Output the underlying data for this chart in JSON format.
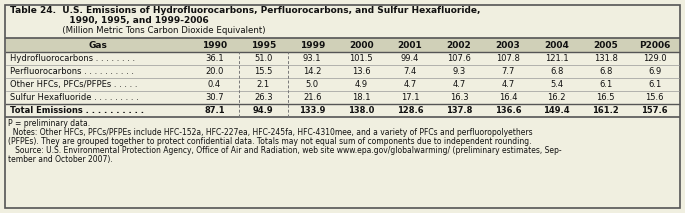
{
  "title_line1": "Table 24.  U.S. Emissions of Hydrofluorocarbons, Perfluorocarbons, and Sulfur Hexafluoride,",
  "title_line2": "                   1990, 1995, and 1999-2006",
  "title_line3": "                   (Million Metric Tons Carbon Dioxide Equivalent)",
  "columns": [
    "Gas",
    "1990",
    "1995",
    "1999",
    "2000",
    "2001",
    "2002",
    "2003",
    "2004",
    "2005",
    "P2006"
  ],
  "rows": [
    [
      "Hydrofluorocarbons . . . . . . . .",
      "36.1",
      "51.0",
      "93.1",
      "101.5",
      "99.4",
      "107.6",
      "107.8",
      "121.1",
      "131.8",
      "129.0"
    ],
    [
      "Perfluorocarbons . . . . . . . . . .",
      "20.0",
      "15.5",
      "14.2",
      "13.6",
      "7.4",
      "9.3",
      "7.7",
      "6.8",
      "6.8",
      "6.9"
    ],
    [
      "Other HFCs, PFCs/PFPEs . . . . .",
      "0.4",
      "2.1",
      "5.0",
      "4.9",
      "4.7",
      "4.7",
      "4.7",
      "5.4",
      "6.1",
      "6.1"
    ],
    [
      "Sulfur Hexafluoride . . . . . . . . .",
      "30.7",
      "26.3",
      "21.6",
      "18.1",
      "17.1",
      "16.3",
      "16.4",
      "16.2",
      "16.5",
      "15.6"
    ]
  ],
  "total_row": [
    "Total Emissions . . . . . . . . . .",
    "87.1",
    "94.9",
    "133.9",
    "138.0",
    "128.6",
    "137.8",
    "136.6",
    "149.4",
    "161.2",
    "157.6"
  ],
  "footnote1": "P = preliminary data.",
  "footnote2": "  Notes: Other HFCs, PFCs/PFPEs include HFC-152a, HFC-227ea, HFC-245fa, HFC-4310mee, and a variety of PFCs and perfluoropolyethers",
  "footnote3": "(PFPEs). They are grouped together to protect confidential data. Totals may not equal sum of components due to independent rounding.",
  "footnote4": "   Source: U.S. Environmental Protection Agency, Office of Air and Radiation, web site www.epa.gov/globalwarming/ (preliminary estimates, Sep-",
  "footnote5": "tember and October 2007).",
  "bg_color": "#f0efe0",
  "header_bg": "#d0d0b8",
  "border_color": "#555555",
  "text_color": "#111111",
  "dashed_color": "#777777"
}
